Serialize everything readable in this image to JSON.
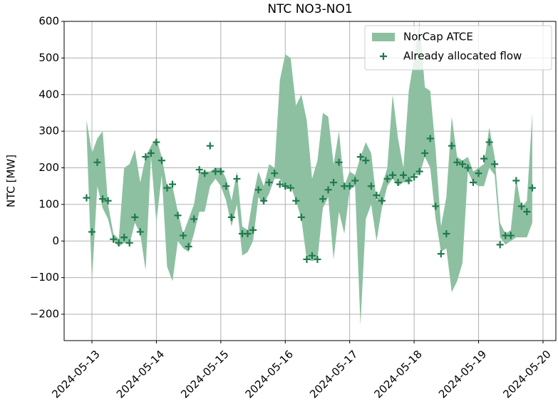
{
  "chart_data": {
    "type": "band-scatter",
    "title": "NTC NO3-NO1",
    "y_label": "NTC [MW]",
    "x": [
      "2024-05-12T22:00",
      "2024-05-13T00:00",
      "2024-05-13T02:00",
      "2024-05-13T04:00",
      "2024-05-13T06:00",
      "2024-05-13T08:00",
      "2024-05-13T10:00",
      "2024-05-13T12:00",
      "2024-05-13T14:00",
      "2024-05-13T16:00",
      "2024-05-13T18:00",
      "2024-05-13T20:00",
      "2024-05-13T22:00",
      "2024-05-14T00:00",
      "2024-05-14T02:00",
      "2024-05-14T04:00",
      "2024-05-14T06:00",
      "2024-05-14T08:00",
      "2024-05-14T10:00",
      "2024-05-14T12:00",
      "2024-05-14T14:00",
      "2024-05-14T16:00",
      "2024-05-14T18:00",
      "2024-05-14T20:00",
      "2024-05-14T22:00",
      "2024-05-15T00:00",
      "2024-05-15T02:00",
      "2024-05-15T04:00",
      "2024-05-15T06:00",
      "2024-05-15T08:00",
      "2024-05-15T10:00",
      "2024-05-15T12:00",
      "2024-05-15T14:00",
      "2024-05-15T16:00",
      "2024-05-15T18:00",
      "2024-05-15T20:00",
      "2024-05-15T22:00",
      "2024-05-16T00:00",
      "2024-05-16T02:00",
      "2024-05-16T04:00",
      "2024-05-16T06:00",
      "2024-05-16T08:00",
      "2024-05-16T10:00",
      "2024-05-16T12:00",
      "2024-05-16T14:00",
      "2024-05-16T16:00",
      "2024-05-16T18:00",
      "2024-05-16T20:00",
      "2024-05-16T22:00",
      "2024-05-17T00:00",
      "2024-05-17T02:00",
      "2024-05-17T04:00",
      "2024-05-17T06:00",
      "2024-05-17T08:00",
      "2024-05-17T10:00",
      "2024-05-17T12:00",
      "2024-05-17T14:00",
      "2024-05-17T16:00",
      "2024-05-17T18:00",
      "2024-05-17T20:00",
      "2024-05-17T22:00",
      "2024-05-18T00:00",
      "2024-05-18T02:00",
      "2024-05-18T04:00",
      "2024-05-18T06:00",
      "2024-05-18T08:00",
      "2024-05-18T10:00",
      "2024-05-18T12:00",
      "2024-05-18T14:00",
      "2024-05-18T16:00",
      "2024-05-18T18:00",
      "2024-05-18T20:00",
      "2024-05-18T22:00",
      "2024-05-19T00:00",
      "2024-05-19T02:00",
      "2024-05-19T04:00",
      "2024-05-19T06:00",
      "2024-05-19T08:00",
      "2024-05-19T10:00",
      "2024-05-19T12:00",
      "2024-05-19T14:00",
      "2024-05-19T16:00",
      "2024-05-19T18:00",
      "2024-05-19T20:00"
    ],
    "series": [
      {
        "name": "NorCap ATCE",
        "type": "band",
        "color": "#8cc0a1",
        "upper": [
          330,
          240,
          280,
          300,
          100,
          20,
          5,
          200,
          210,
          250,
          160,
          230,
          260,
          280,
          230,
          150,
          150,
          80,
          20,
          60,
          100,
          190,
          190,
          190,
          200,
          200,
          170,
          110,
          190,
          40,
          30,
          120,
          190,
          150,
          210,
          200,
          440,
          510,
          500,
          370,
          400,
          330,
          170,
          220,
          350,
          340,
          210,
          300,
          150,
          190,
          180,
          230,
          270,
          240,
          110,
          150,
          200,
          400,
          280,
          200,
          410,
          500,
          600,
          420,
          410,
          250,
          40,
          120,
          340,
          230,
          220,
          230,
          190,
          200,
          210,
          310,
          230,
          50,
          20,
          30,
          170,
          90,
          110,
          350
        ],
        "lower": [
          300,
          -110,
          150,
          90,
          60,
          0,
          -15,
          -5,
          -10,
          50,
          20,
          -80,
          230,
          50,
          180,
          -70,
          -110,
          0,
          -20,
          -30,
          20,
          80,
          80,
          150,
          170,
          150,
          110,
          40,
          100,
          -40,
          -30,
          0,
          120,
          100,
          130,
          170,
          170,
          140,
          150,
          110,
          60,
          -50,
          -55,
          -50,
          90,
          120,
          -50,
          80,
          20,
          140,
          150,
          -230,
          60,
          100,
          0,
          90,
          150,
          170,
          150,
          160,
          160,
          180,
          180,
          230,
          200,
          60,
          -30,
          -20,
          -140,
          -110,
          -60,
          190,
          160,
          150,
          150,
          200,
          180,
          10,
          -10,
          0,
          10,
          10,
          10,
          50
        ]
      },
      {
        "name": "Already allocated flow",
        "type": "scatter",
        "color": "#1e7a4c",
        "values": [
          118,
          25,
          215,
          115,
          110,
          5,
          -5,
          10,
          -5,
          65,
          25,
          230,
          240,
          270,
          220,
          145,
          155,
          70,
          15,
          -15,
          60,
          195,
          185,
          260,
          190,
          190,
          150,
          65,
          170,
          20,
          20,
          30,
          140,
          110,
          160,
          185,
          155,
          150,
          145,
          110,
          65,
          -50,
          -40,
          -50,
          115,
          140,
          160,
          215,
          150,
          150,
          165,
          230,
          220,
          150,
          125,
          110,
          170,
          180,
          160,
          180,
          165,
          175,
          190,
          240,
          280,
          95,
          -35,
          20,
          260,
          215,
          210,
          200,
          160,
          185,
          225,
          270,
          210,
          -10,
          15,
          15,
          165,
          95,
          80,
          145
        ]
      }
    ],
    "xlim": [
      "2024-05-12T13:39",
      "2024-05-20T04:47"
    ],
    "xticks": [
      "2024-05-13",
      "2024-05-14",
      "2024-05-15",
      "2024-05-16",
      "2024-05-17",
      "2024-05-18",
      "2024-05-19",
      "2024-05-20"
    ],
    "ylim": [
      -272,
      600
    ],
    "yticks": [
      {
        "value": -200,
        "label": "−200"
      },
      {
        "value": -100,
        "label": "−100"
      },
      0,
      100,
      200,
      300,
      400,
      500,
      600
    ],
    "grid": true,
    "legend": "upper right"
  }
}
